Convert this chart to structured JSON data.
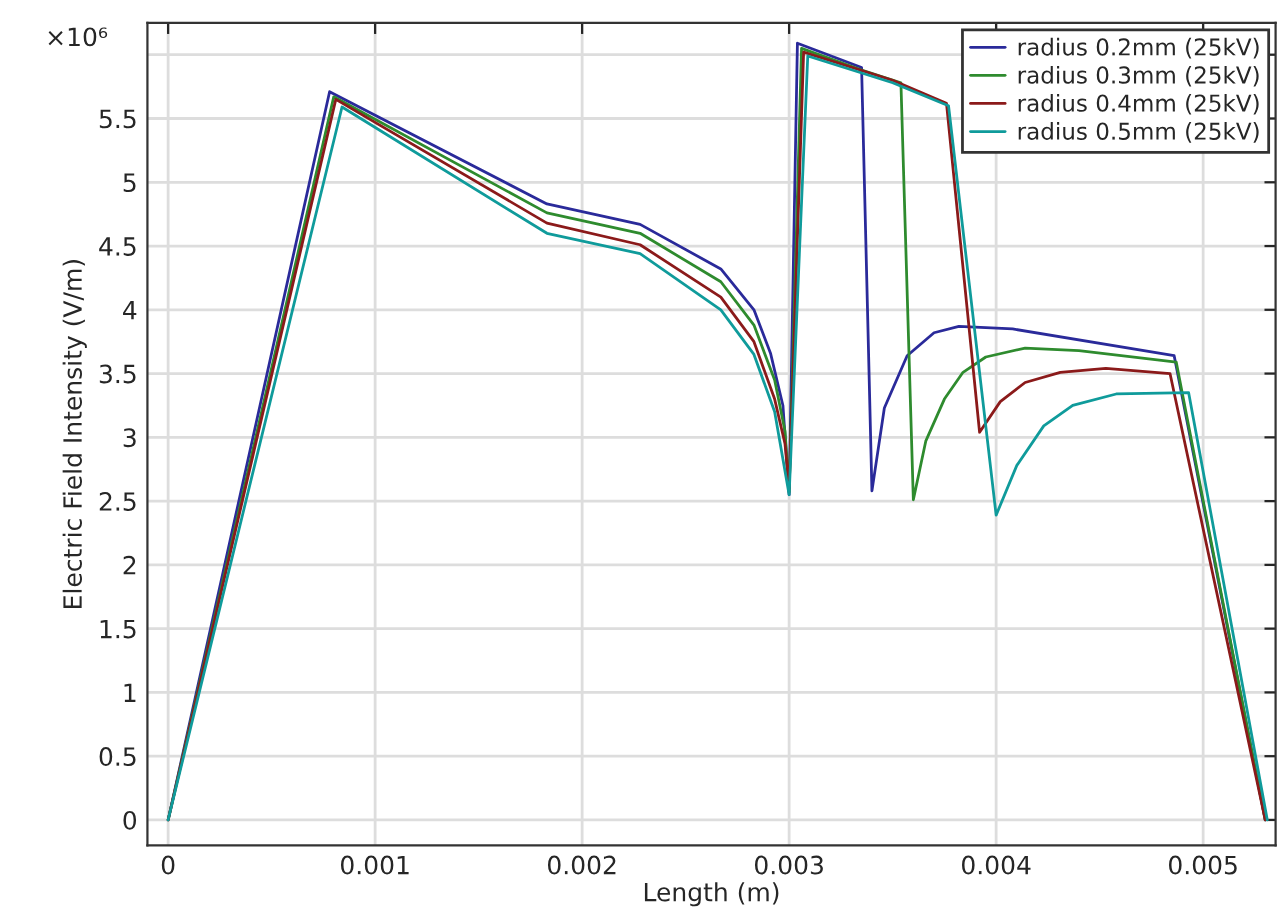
{
  "chart_data": {
    "type": "line",
    "xlabel": "Length (m)",
    "ylabel": "Electric Field Intensity (V/m)",
    "annotations": [
      "×10⁶"
    ],
    "xlim": [
      -0.0001,
      0.00535
    ],
    "ylim": [
      -0.2,
      6.25
    ],
    "xticks": [
      0,
      0.001,
      0.002,
      0.003,
      0.004,
      0.005
    ],
    "yticks": [
      0,
      0.5,
      1,
      1.5,
      2,
      2.5,
      3,
      3.5,
      4,
      4.5,
      5,
      5.5,
      {
        "value": 6,
        "label": null
      }
    ],
    "grid": true,
    "legend": "top right",
    "line_style": "solid",
    "marker": "none",
    "series": [
      {
        "name": "radius 0.2mm (25kV)",
        "color": "#2a2a9a",
        "x": [
          0,
          0.00078,
          0.00183,
          0.00228,
          0.00267,
          0.00283,
          0.00291,
          0.00297,
          0.003,
          0.00304,
          0.00335,
          0.0034,
          0.00346,
          0.00357,
          0.0037,
          0.00382,
          0.00408,
          0.00486,
          0.0053
        ],
        "values": [
          0,
          5.71,
          4.83,
          4.67,
          4.32,
          4.0,
          3.66,
          3.25,
          2.55,
          6.09,
          5.9,
          2.58,
          3.23,
          3.64,
          3.82,
          3.87,
          3.85,
          3.64,
          0
        ]
      },
      {
        "name": "radius 0.3mm (25kV)",
        "color": "#2e8b2e",
        "x": [
          0,
          0.0008,
          0.00183,
          0.00228,
          0.00267,
          0.00283,
          0.00293,
          0.00298,
          0.003,
          0.00306,
          0.00335,
          0.00354,
          0.0036,
          0.00366,
          0.00375,
          0.00384,
          0.00395,
          0.00414,
          0.0044,
          0.00487,
          0.0053
        ],
        "values": [
          0,
          5.67,
          4.76,
          4.6,
          4.22,
          3.88,
          3.45,
          3.05,
          2.57,
          6.05,
          5.88,
          5.78,
          2.51,
          2.97,
          3.3,
          3.51,
          3.63,
          3.7,
          3.68,
          3.59,
          0
        ]
      },
      {
        "name": "radius 0.4mm (25kV)",
        "color": "#8b1a1a",
        "x": [
          0,
          0.00081,
          0.00183,
          0.00228,
          0.00267,
          0.00283,
          0.00293,
          0.00298,
          0.003,
          0.00307,
          0.0035,
          0.00376,
          0.00392,
          0.00402,
          0.00414,
          0.00431,
          0.00453,
          0.00484,
          0.0053
        ],
        "values": [
          0,
          5.65,
          4.68,
          4.51,
          4.1,
          3.75,
          3.3,
          2.95,
          2.6,
          6.02,
          5.8,
          5.62,
          3.04,
          3.28,
          3.43,
          3.51,
          3.54,
          3.5,
          0
        ]
      },
      {
        "name": "radius 0.5mm (25kV)",
        "color": "#0f9b9b",
        "x": [
          0,
          0.00084,
          0.00183,
          0.00228,
          0.00267,
          0.00283,
          0.00293,
          0.003,
          0.00309,
          0.0035,
          0.00377,
          0.004,
          0.0041,
          0.00423,
          0.00437,
          0.00458,
          0.00493,
          0.00531
        ],
        "values": [
          0,
          5.59,
          4.6,
          4.44,
          4.0,
          3.65,
          3.2,
          2.55,
          5.99,
          5.78,
          5.6,
          2.39,
          2.78,
          3.09,
          3.25,
          3.34,
          3.35,
          0
        ]
      }
    ]
  }
}
